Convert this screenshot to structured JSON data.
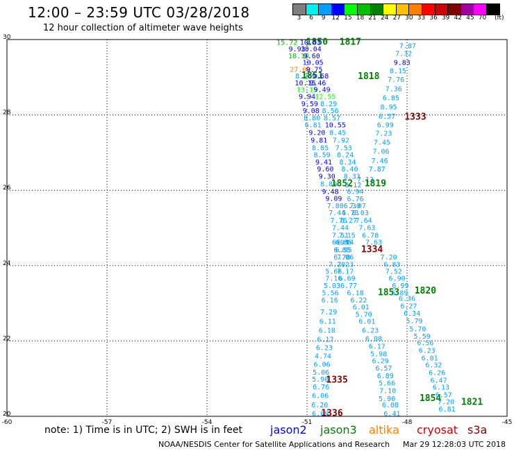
{
  "title": "12:00 – 23:59 UTC 03/28/2018",
  "subtitle": "12 hour collection of altimeter wave heights",
  "scale": {
    "unit": "(ft)",
    "items": [
      {
        "label": "3",
        "color": "#7f7f7f"
      },
      {
        "label": "6",
        "color": "#00f0f0"
      },
      {
        "label": "9",
        "color": "#00a0ff"
      },
      {
        "label": "12",
        "color": "#0000ff"
      },
      {
        "label": "15",
        "color": "#00ff00"
      },
      {
        "label": "18",
        "color": "#00c000"
      },
      {
        "label": "21",
        "color": "#008000"
      },
      {
        "label": "24",
        "color": "#ffff00"
      },
      {
        "label": "27",
        "color": "#ffc000"
      },
      {
        "label": "30",
        "color": "#ff8000"
      },
      {
        "label": "33",
        "color": "#ff0000"
      },
      {
        "label": "36",
        "color": "#d00000"
      },
      {
        "label": "39",
        "color": "#800000"
      },
      {
        "label": "42",
        "color": "#a000a0"
      },
      {
        "label": "45",
        "color": "#ff00ff"
      },
      {
        "label": "70",
        "color": "#000000"
      }
    ]
  },
  "axes": {
    "lat_ticks": [
      "30",
      "28",
      "26",
      "24",
      "22",
      "20"
    ],
    "lon_ticks": [
      "-60",
      "-57",
      "-54",
      "-51",
      "-48",
      "-45"
    ]
  },
  "labels": [
    {
      "t": "15.72",
      "lon": -51.6,
      "lat": 29.94,
      "c": "#00c000"
    },
    {
      "t": "1850",
      "lon": -50.7,
      "lat": 29.94,
      "c": "#008000",
      "b": 1
    },
    {
      "t": "10.03",
      "lon": -50.9,
      "lat": 29.94,
      "c": "#0000ff"
    },
    {
      "t": "1817",
      "lon": -49.7,
      "lat": 29.94,
      "c": "#008000",
      "b": 1
    },
    {
      "t": "7.87",
      "lon": -47.98,
      "lat": 29.84,
      "c": "#00a0ff"
    },
    {
      "t": "9.93",
      "lon": -51.3,
      "lat": 29.76,
      "c": "#0000ff"
    },
    {
      "t": "10.04",
      "lon": -50.88,
      "lat": 29.76,
      "c": "#0000ff"
    },
    {
      "t": "7.32",
      "lon": -48.1,
      "lat": 29.64,
      "c": "#00a0ff"
    },
    {
      "t": "18.10",
      "lon": -51.25,
      "lat": 29.58,
      "c": "#00c000"
    },
    {
      "t": "9.60",
      "lon": -50.86,
      "lat": 29.58,
      "c": "#0000ff"
    },
    {
      "t": "9.83",
      "lon": -48.15,
      "lat": 29.4,
      "c": "#0000ff"
    },
    {
      "t": "10.05",
      "lon": -50.82,
      "lat": 29.4,
      "c": "#0000ff"
    },
    {
      "t": "27.09",
      "lon": -51.2,
      "lat": 29.22,
      "c": "#ff8000"
    },
    {
      "t": "9.75",
      "lon": -50.78,
      "lat": 29.22,
      "c": "#0000ff"
    },
    {
      "t": "8.15",
      "lon": -48.27,
      "lat": 29.18,
      "c": "#00a0ff"
    },
    {
      "t": "8.96",
      "lon": -51.1,
      "lat": 29.04,
      "c": "#00a0ff"
    },
    {
      "t": "1851",
      "lon": -50.84,
      "lat": 29.04,
      "c": "#008000",
      "b": 1
    },
    {
      "t": "9.68",
      "lon": -50.6,
      "lat": 29.04,
      "c": "#0000ff"
    },
    {
      "t": "1818",
      "lon": -49.15,
      "lat": 29.02,
      "c": "#008000",
      "b": 1
    },
    {
      "t": "7.76",
      "lon": -48.33,
      "lat": 28.95,
      "c": "#00a0ff"
    },
    {
      "t": "10.15",
      "lon": -51.05,
      "lat": 28.86,
      "c": "#0000ff"
    },
    {
      "t": "9.46",
      "lon": -50.68,
      "lat": 28.86,
      "c": "#0000ff"
    },
    {
      "t": "13.15",
      "lon": -51.0,
      "lat": 28.68,
      "c": "#00ff00"
    },
    {
      "t": "9.49",
      "lon": -50.55,
      "lat": 28.68,
      "c": "#0000ff"
    },
    {
      "t": "7.36",
      "lon": -48.4,
      "lat": 28.7,
      "c": "#00a0ff"
    },
    {
      "t": "9.94",
      "lon": -51.0,
      "lat": 28.5,
      "c": "#0000ff"
    },
    {
      "t": "12.55",
      "lon": -50.45,
      "lat": 28.5,
      "c": "#00ff00"
    },
    {
      "t": "6.85",
      "lon": -48.48,
      "lat": 28.46,
      "c": "#00a0ff"
    },
    {
      "t": "9.59",
      "lon": -50.92,
      "lat": 28.31,
      "c": "#0000ff"
    },
    {
      "t": "8.29",
      "lon": -50.35,
      "lat": 28.31,
      "c": "#00a0ff"
    },
    {
      "t": "8.95",
      "lon": -48.55,
      "lat": 28.22,
      "c": "#00a0ff"
    },
    {
      "t": "9.08",
      "lon": -50.88,
      "lat": 28.12,
      "c": "#0000ff"
    },
    {
      "t": "8.56",
      "lon": -50.3,
      "lat": 28.12,
      "c": "#00a0ff"
    },
    {
      "t": "6.57",
      "lon": -48.6,
      "lat": 27.97,
      "c": "#00a0ff"
    },
    {
      "t": "1333",
      "lon": -47.75,
      "lat": 27.95,
      "c": "#800000",
      "b": 1
    },
    {
      "t": "8.80",
      "lon": -50.85,
      "lat": 27.93,
      "c": "#00a0ff"
    },
    {
      "t": "8.57",
      "lon": -50.25,
      "lat": 27.93,
      "c": "#00a0ff"
    },
    {
      "t": "6.81",
      "lon": -50.82,
      "lat": 27.74,
      "c": "#00a0ff"
    },
    {
      "t": "10.55",
      "lon": -50.15,
      "lat": 27.74,
      "c": "#0000ff"
    },
    {
      "t": "6.99",
      "lon": -48.65,
      "lat": 27.74,
      "c": "#00a0ff"
    },
    {
      "t": "9.20",
      "lon": -50.7,
      "lat": 27.54,
      "c": "#0000ff"
    },
    {
      "t": "8.45",
      "lon": -50.08,
      "lat": 27.54,
      "c": "#00a0ff"
    },
    {
      "t": "7.23",
      "lon": -48.7,
      "lat": 27.52,
      "c": "#00a0ff"
    },
    {
      "t": "9.81",
      "lon": -50.64,
      "lat": 27.34,
      "c": "#0000ff"
    },
    {
      "t": "7.92",
      "lon": -49.98,
      "lat": 27.34,
      "c": "#00a0ff"
    },
    {
      "t": "7.45",
      "lon": -48.75,
      "lat": 27.28,
      "c": "#00a0ff"
    },
    {
      "t": "8.85",
      "lon": -50.6,
      "lat": 27.14,
      "c": "#00a0ff"
    },
    {
      "t": "7.53",
      "lon": -49.9,
      "lat": 27.14,
      "c": "#00a0ff"
    },
    {
      "t": "7.06",
      "lon": -48.78,
      "lat": 27.04,
      "c": "#00a0ff"
    },
    {
      "t": "8.59",
      "lon": -50.55,
      "lat": 26.95,
      "c": "#00a0ff"
    },
    {
      "t": "8.24",
      "lon": -49.85,
      "lat": 26.95,
      "c": "#00a0ff"
    },
    {
      "t": "7.46",
      "lon": -48.82,
      "lat": 26.8,
      "c": "#00a0ff"
    },
    {
      "t": "9.41",
      "lon": -50.5,
      "lat": 26.76,
      "c": "#0000ff"
    },
    {
      "t": "8.34",
      "lon": -49.78,
      "lat": 26.76,
      "c": "#00a0ff"
    },
    {
      "t": "9.60",
      "lon": -50.45,
      "lat": 26.57,
      "c": "#0000ff"
    },
    {
      "t": "8.40",
      "lon": -49.72,
      "lat": 26.57,
      "c": "#00a0ff"
    },
    {
      "t": "7.87",
      "lon": -48.9,
      "lat": 26.57,
      "c": "#00a0ff"
    },
    {
      "t": "9.30",
      "lon": -50.4,
      "lat": 26.38,
      "c": "#0000ff"
    },
    {
      "t": "8.33",
      "lon": -49.65,
      "lat": 26.38,
      "c": "#00a0ff"
    },
    {
      "t": "7.13",
      "lon": -49.25,
      "lat": 26.3,
      "c": "#00a0ff"
    },
    {
      "t": "8.89",
      "lon": -50.35,
      "lat": 26.18,
      "c": "#00a0ff"
    },
    {
      "t": "1852",
      "lon": -49.95,
      "lat": 26.18,
      "c": "#008000",
      "b": 1
    },
    {
      "t": "1819",
      "lon": -48.95,
      "lat": 26.18,
      "c": "#008000",
      "b": 1
    },
    {
      "t": "8.12",
      "lon": -49.62,
      "lat": 26.15,
      "c": "#00a0ff"
    },
    {
      "t": "9.48",
      "lon": -50.3,
      "lat": 25.98,
      "c": "#0000ff"
    },
    {
      "t": "6.94",
      "lon": -49.55,
      "lat": 25.98,
      "c": "#00a0ff"
    },
    {
      "t": "6.76",
      "lon": -49.55,
      "lat": 25.78,
      "c": "#00a0ff"
    },
    {
      "t": "9.09",
      "lon": -50.2,
      "lat": 25.79,
      "c": "#0000ff"
    },
    {
      "t": "7.80",
      "lon": -50.15,
      "lat": 25.6,
      "c": "#00a0ff"
    },
    {
      "t": "6.30",
      "lon": -49.65,
      "lat": 25.6,
      "c": "#00a0ff"
    },
    {
      "t": "7.07",
      "lon": -49.48,
      "lat": 25.6,
      "c": "#00a0ff"
    },
    {
      "t": "7.44",
      "lon": -50.1,
      "lat": 25.41,
      "c": "#00a0ff"
    },
    {
      "t": "5.73",
      "lon": -49.7,
      "lat": 25.41,
      "c": "#00a0ff"
    },
    {
      "t": "8.03",
      "lon": -49.4,
      "lat": 25.41,
      "c": "#00a0ff"
    },
    {
      "t": "7.76",
      "lon": -50.05,
      "lat": 25.21,
      "c": "#00a0ff"
    },
    {
      "t": "6.27",
      "lon": -49.75,
      "lat": 25.21,
      "c": "#00a0ff"
    },
    {
      "t": "7.64",
      "lon": -49.3,
      "lat": 25.21,
      "c": "#00a0ff"
    },
    {
      "t": "7.44",
      "lon": -50.0,
      "lat": 25.02,
      "c": "#00a0ff"
    },
    {
      "t": "7.63",
      "lon": -49.2,
      "lat": 25.02,
      "c": "#00a0ff"
    },
    {
      "t": "7.51",
      "lon": -50.0,
      "lat": 24.82,
      "c": "#00a0ff"
    },
    {
      "t": "7.15",
      "lon": -49.8,
      "lat": 24.82,
      "c": "#00a0ff"
    },
    {
      "t": "6.78",
      "lon": -49.1,
      "lat": 24.82,
      "c": "#00a0ff"
    },
    {
      "t": "6.93",
      "lon": -50.0,
      "lat": 24.63,
      "c": "#00a0ff"
    },
    {
      "t": "6.94",
      "lon": -49.85,
      "lat": 24.63,
      "c": "#00a0ff"
    },
    {
      "t": "6.85",
      "lon": -49.9,
      "lat": 24.63,
      "c": "#00a0ff"
    },
    {
      "t": "7.63",
      "lon": -49.0,
      "lat": 24.63,
      "c": "#00a0ff"
    },
    {
      "t": "6.85",
      "lon": -49.95,
      "lat": 24.43,
      "c": "#00a0ff"
    },
    {
      "t": "6.95",
      "lon": -49.9,
      "lat": 24.43,
      "c": "#00a0ff"
    },
    {
      "t": "1334",
      "lon": -49.05,
      "lat": 24.43,
      "c": "#800000",
      "b": 1
    },
    {
      "t": "6.78",
      "lon": -49.95,
      "lat": 24.24,
      "c": "#00a0ff"
    },
    {
      "t": "7.06",
      "lon": -49.85,
      "lat": 24.24,
      "c": "#00a0ff"
    },
    {
      "t": "7.20",
      "lon": -48.55,
      "lat": 24.24,
      "c": "#00a0ff"
    },
    {
      "t": "7.20",
      "lon": -50.1,
      "lat": 24.04,
      "c": "#00a0ff"
    },
    {
      "t": "7.23",
      "lon": -49.85,
      "lat": 24.04,
      "c": "#00a0ff"
    },
    {
      "t": "6.83",
      "lon": -48.45,
      "lat": 24.04,
      "c": "#00a0ff"
    },
    {
      "t": "5.66",
      "lon": -50.2,
      "lat": 23.86,
      "c": "#00a0ff"
    },
    {
      "t": "7.17",
      "lon": -49.85,
      "lat": 23.86,
      "c": "#00a0ff"
    },
    {
      "t": "7.52",
      "lon": -48.4,
      "lat": 23.86,
      "c": "#00a0ff"
    },
    {
      "t": "7.16",
      "lon": -50.2,
      "lat": 23.67,
      "c": "#00a0ff"
    },
    {
      "t": "6.69",
      "lon": -49.8,
      "lat": 23.67,
      "c": "#00a0ff"
    },
    {
      "t": "6.90",
      "lon": -48.3,
      "lat": 23.67,
      "c": "#00a0ff"
    },
    {
      "t": "5.03",
      "lon": -50.25,
      "lat": 23.48,
      "c": "#00a0ff"
    },
    {
      "t": "6.77",
      "lon": -49.75,
      "lat": 23.48,
      "c": "#00a0ff"
    },
    {
      "t": "6.99",
      "lon": -48.2,
      "lat": 23.48,
      "c": "#00a0ff"
    },
    {
      "t": "5.56",
      "lon": -50.3,
      "lat": 23.29,
      "c": "#00a0ff"
    },
    {
      "t": "6.18",
      "lon": -49.55,
      "lat": 23.29,
      "c": "#00a0ff"
    },
    {
      "t": "1853",
      "lon": -48.55,
      "lat": 23.29,
      "c": "#008000",
      "b": 1
    },
    {
      "t": "6.89",
      "lon": -48.22,
      "lat": 23.29,
      "c": "#00a0ff"
    },
    {
      "t": "1820",
      "lon": -47.45,
      "lat": 23.33,
      "c": "#008000",
      "b": 1
    },
    {
      "t": "6.16",
      "lon": -50.32,
      "lat": 23.09,
      "c": "#00a0ff"
    },
    {
      "t": "6.22",
      "lon": -49.45,
      "lat": 23.09,
      "c": "#00a0ff"
    },
    {
      "t": "6.36",
      "lon": -48.0,
      "lat": 23.14,
      "c": "#00a0ff"
    },
    {
      "t": "6.01",
      "lon": -49.38,
      "lat": 22.91,
      "c": "#00a0ff"
    },
    {
      "t": "6.27",
      "lon": -47.95,
      "lat": 22.94,
      "c": "#00a0ff"
    },
    {
      "t": "7.29",
      "lon": -50.35,
      "lat": 22.78,
      "c": "#00a0ff"
    },
    {
      "t": "5.70",
      "lon": -49.3,
      "lat": 22.72,
      "c": "#00a0ff"
    },
    {
      "t": "6.34",
      "lon": -47.85,
      "lat": 22.74,
      "c": "#00a0ff"
    },
    {
      "t": "6.11",
      "lon": -50.38,
      "lat": 22.53,
      "c": "#00a0ff"
    },
    {
      "t": "6.01",
      "lon": -49.2,
      "lat": 22.53,
      "c": "#00a0ff"
    },
    {
      "t": "5.79",
      "lon": -47.78,
      "lat": 22.54,
      "c": "#00a0ff"
    },
    {
      "t": "6.18",
      "lon": -50.4,
      "lat": 22.29,
      "c": "#00a0ff"
    },
    {
      "t": "6.23",
      "lon": -49.1,
      "lat": 22.29,
      "c": "#00a0ff"
    },
    {
      "t": "5.70",
      "lon": -47.68,
      "lat": 22.33,
      "c": "#00a0ff"
    },
    {
      "t": "6.17",
      "lon": -50.45,
      "lat": 22.05,
      "c": "#00a0ff"
    },
    {
      "t": "6.08",
      "lon": -49.0,
      "lat": 22.07,
      "c": "#00a0ff"
    },
    {
      "t": "5.59",
      "lon": -47.55,
      "lat": 22.14,
      "c": "#00a0ff"
    },
    {
      "t": "6.56",
      "lon": -47.45,
      "lat": 21.96,
      "c": "#00a0ff"
    },
    {
      "t": "6.23",
      "lon": -50.48,
      "lat": 21.83,
      "c": "#00a0ff"
    },
    {
      "t": "6.17",
      "lon": -48.9,
      "lat": 21.87,
      "c": "#00a0ff"
    },
    {
      "t": "6.23",
      "lon": -47.4,
      "lat": 21.76,
      "c": "#00a0ff"
    },
    {
      "t": "4.74",
      "lon": -50.52,
      "lat": 21.61,
      "c": "#00a0ff"
    },
    {
      "t": "5.98",
      "lon": -48.85,
      "lat": 21.67,
      "c": "#00a0ff"
    },
    {
      "t": "6.01",
      "lon": -47.32,
      "lat": 21.56,
      "c": "#00a0ff"
    },
    {
      "t": "6.29",
      "lon": -48.8,
      "lat": 21.48,
      "c": "#00a0ff"
    },
    {
      "t": "6.06",
      "lon": -50.55,
      "lat": 21.39,
      "c": "#00a0ff"
    },
    {
      "t": "6.57",
      "lon": -48.7,
      "lat": 21.29,
      "c": "#00a0ff"
    },
    {
      "t": "6.32",
      "lon": -47.2,
      "lat": 21.37,
      "c": "#00a0ff"
    },
    {
      "t": "5.06",
      "lon": -50.58,
      "lat": 21.18,
      "c": "#00a0ff"
    },
    {
      "t": "6.89",
      "lon": -48.65,
      "lat": 21.09,
      "c": "#00a0ff"
    },
    {
      "t": "6.26",
      "lon": -47.1,
      "lat": 21.17,
      "c": "#00a0ff"
    },
    {
      "t": "5.98",
      "lon": -50.6,
      "lat": 20.99,
      "c": "#00a0ff"
    },
    {
      "t": "1335",
      "lon": -50.1,
      "lat": 20.97,
      "c": "#800000",
      "b": 1
    },
    {
      "t": "5.66",
      "lon": -48.6,
      "lat": 20.89,
      "c": "#00a0ff"
    },
    {
      "t": "6.47",
      "lon": -47.05,
      "lat": 20.97,
      "c": "#00a0ff"
    },
    {
      "t": "6.76",
      "lon": -50.58,
      "lat": 20.79,
      "c": "#00a0ff"
    },
    {
      "t": "7.10",
      "lon": -48.58,
      "lat": 20.69,
      "c": "#00a0ff"
    },
    {
      "t": "6.13",
      "lon": -46.98,
      "lat": 20.78,
      "c": "#00a0ff"
    },
    {
      "t": "6.06",
      "lon": -50.6,
      "lat": 20.56,
      "c": "#00a0ff"
    },
    {
      "t": "5.90",
      "lon": -48.6,
      "lat": 20.48,
      "c": "#00a0ff"
    },
    {
      "t": "1854",
      "lon": -47.3,
      "lat": 20.48,
      "c": "#008000",
      "b": 1
    },
    {
      "t": "6.57",
      "lon": -46.9,
      "lat": 20.58,
      "c": "#00a0ff"
    },
    {
      "t": "7.20",
      "lon": -46.83,
      "lat": 20.4,
      "c": "#00a0ff"
    },
    {
      "t": "1821",
      "lon": -46.05,
      "lat": 20.38,
      "c": "#008000",
      "b": 1
    },
    {
      "t": "6.20",
      "lon": -50.62,
      "lat": 20.31,
      "c": "#00a0ff"
    },
    {
      "t": "6.08",
      "lon": -48.5,
      "lat": 20.31,
      "c": "#00a0ff"
    },
    {
      "t": "6.81",
      "lon": -46.8,
      "lat": 20.2,
      "c": "#00a0ff"
    },
    {
      "t": "6.69",
      "lon": -50.6,
      "lat": 20.08,
      "c": "#00a0ff"
    },
    {
      "t": "1336",
      "lon": -50.25,
      "lat": 20.08,
      "c": "#800000",
      "b": 1
    },
    {
      "t": "6.41",
      "lon": -48.45,
      "lat": 20.08,
      "c": "#00a0ff"
    }
  ],
  "notes": {
    "note": "note: 1) Time is in UTC; 2) SWH is in feet",
    "sat1": "jason2",
    "sat2": "jason3",
    "sat3": "altika",
    "sat4": "cryosat",
    "sat5": "s3a",
    "credit": "NOAA/NESDIS Center for Satellite Applications and Research",
    "timestamp": "Mar 29 12:28:03 UTC 2018"
  },
  "colors": {
    "jason2": "#0000ff",
    "jason3": "#008000",
    "altika": "#ff8000",
    "cryosat": "#d00000",
    "s3a": "#800000"
  }
}
